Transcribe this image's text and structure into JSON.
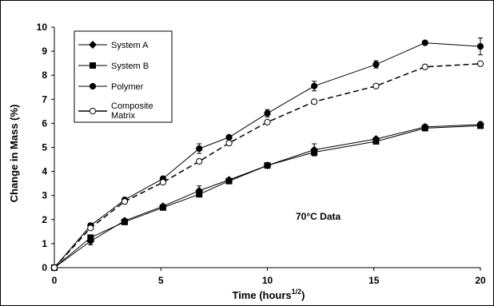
{
  "chart_data": {
    "type": "line",
    "xlabel": "Time (hours",
    "xlabel_sup": "1/2",
    "xlabel_close": ")",
    "ylabel": "Change in Mass (%)",
    "xlim": [
      0,
      20
    ],
    "ylim": [
      0,
      10
    ],
    "x_ticks": [
      "0",
      "5",
      "10",
      "15",
      "20"
    ],
    "y_ticks": [
      "0",
      "1",
      "2",
      "3",
      "4",
      "5",
      "6",
      "7",
      "8",
      "9",
      "10"
    ],
    "annotation": "70°C Data",
    "grid": false,
    "legend_position": "top-left",
    "series": [
      {
        "name": "System A",
        "marker": "diamond",
        "filled": true,
        "dashed": false,
        "color": "#000000",
        "points": [
          [
            0,
            0
          ],
          [
            1.7,
            1.1
          ],
          [
            3.3,
            1.95
          ],
          [
            5.1,
            2.55
          ],
          [
            6.8,
            3.2
          ],
          [
            8.2,
            3.65
          ],
          [
            10,
            4.25
          ],
          [
            12.2,
            4.9
          ],
          [
            15.1,
            5.35
          ],
          [
            17.4,
            5.85
          ],
          [
            20,
            5.95
          ]
        ],
        "err": [
          0,
          0.15,
          0.05,
          0.06,
          0.2,
          0.05,
          0.05,
          0.25,
          0.08,
          0.1,
          0.12
        ]
      },
      {
        "name": "System B",
        "marker": "square",
        "filled": true,
        "dashed": false,
        "color": "#000000",
        "points": [
          [
            0,
            0
          ],
          [
            1.7,
            1.25
          ],
          [
            3.3,
            1.9
          ],
          [
            5.1,
            2.5
          ],
          [
            6.8,
            3.05
          ],
          [
            8.2,
            3.6
          ],
          [
            10,
            4.25
          ],
          [
            12.2,
            4.8
          ],
          [
            15.1,
            5.25
          ],
          [
            17.4,
            5.8
          ],
          [
            20,
            5.9
          ]
        ],
        "err": [
          0,
          0.1,
          0.05,
          0.05,
          0.1,
          0.05,
          0.05,
          0.15,
          0.05,
          0.1,
          0.1
        ]
      },
      {
        "name": "Polymer",
        "marker": "circle",
        "filled": true,
        "dashed": false,
        "color": "#000000",
        "points": [
          [
            0,
            0
          ],
          [
            1.7,
            1.75
          ],
          [
            3.3,
            2.82
          ],
          [
            5.1,
            3.7
          ],
          [
            6.8,
            4.95
          ],
          [
            8.2,
            5.42
          ],
          [
            10,
            6.42
          ],
          [
            12.2,
            7.55
          ],
          [
            15.1,
            8.45
          ],
          [
            17.4,
            9.35
          ],
          [
            20,
            9.2
          ]
        ],
        "err": [
          0,
          0.1,
          0.05,
          0.05,
          0.2,
          0.05,
          0.15,
          0.2,
          0.15,
          0.05,
          0.35
        ]
      },
      {
        "name": "Composite Matrix",
        "marker": "circle",
        "filled": false,
        "dashed": true,
        "color": "#000000",
        "points": [
          [
            0,
            0
          ],
          [
            1.7,
            1.65
          ],
          [
            3.3,
            2.75
          ],
          [
            5.1,
            3.55
          ],
          [
            6.8,
            4.42
          ],
          [
            8.2,
            5.18
          ],
          [
            10,
            6.05
          ],
          [
            12.2,
            6.9
          ],
          [
            15.1,
            7.55
          ],
          [
            17.4,
            8.35
          ],
          [
            20,
            8.48
          ]
        ],
        "err": [
          0,
          0,
          0,
          0,
          0,
          0,
          0,
          0,
          0,
          0,
          0
        ]
      }
    ]
  }
}
